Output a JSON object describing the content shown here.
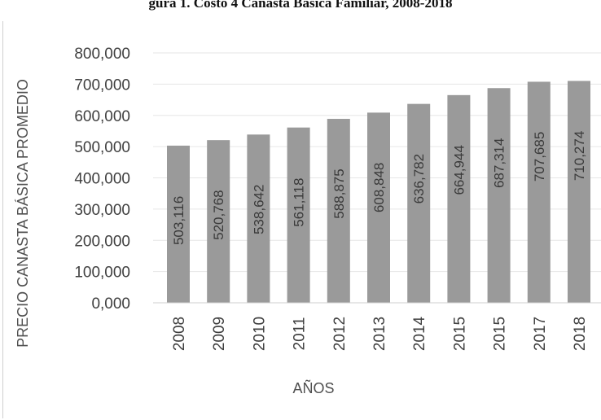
{
  "chart_data": {
    "type": "bar",
    "title": "gura 1. Costo 4 Canasta Básica Familiar, 2008-2018",
    "xlabel": "AÑOS",
    "ylabel": "PRECIO CANASTA BÁSICA PROMEDIO",
    "categories": [
      "2008",
      "2009",
      "2010",
      "2011",
      "2012",
      "2013",
      "2014",
      "2015",
      "2015",
      "2017",
      "2018"
    ],
    "values": [
      503.116,
      520.768,
      538.642,
      561.118,
      588.875,
      608.848,
      636.782,
      664.944,
      687.314,
      707.685,
      710.274
    ],
    "value_labels": [
      "503,116",
      "520,768",
      "538,642",
      "561,118",
      "588,875",
      "608,848",
      "636,782",
      "664,944",
      "687,314",
      "707,685",
      "710,274"
    ],
    "y_ticks": [
      0,
      100,
      200,
      300,
      400,
      500,
      600,
      700,
      800
    ],
    "y_tick_labels": [
      "0,000",
      "100,000",
      "200,000",
      "300,000",
      "400,000",
      "500,000",
      "600,000",
      "700,000",
      "800,000"
    ],
    "ylim": [
      0,
      800
    ],
    "grid": true,
    "bar_color": "#9a9a9a",
    "grid_color": "#e6e6e6"
  }
}
